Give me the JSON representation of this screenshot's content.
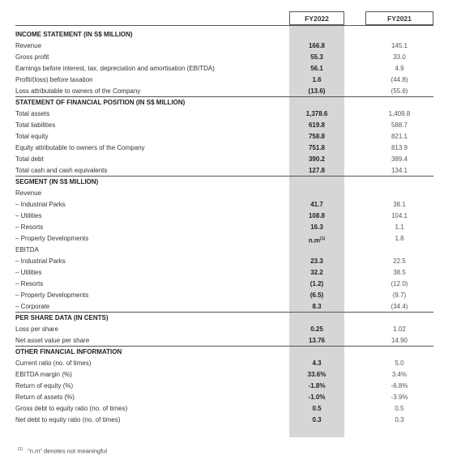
{
  "header": {
    "col1": "FY2022",
    "col2": "FY2021"
  },
  "rows": [
    {
      "type": "section",
      "label": "INCOME STATEMENT (IN S$ MILLION)"
    },
    {
      "type": "item",
      "label": "Revenue",
      "v22": "166.8",
      "v21": "145.1"
    },
    {
      "type": "item",
      "label": "Gross profit",
      "v22": "55.3",
      "v21": "33.0"
    },
    {
      "type": "item",
      "label": "Earnings before interest, tax, depreciation and amortisation (EBITDA)",
      "v22": "56.1",
      "v21": "4.9"
    },
    {
      "type": "item",
      "label": "Profit/(loss) before taxation",
      "v22": "1.6",
      "v21": "(44.8)"
    },
    {
      "type": "item",
      "label": "Loss attributable to owners of the Company",
      "v22": "(13.6)",
      "v21": "(55.6)",
      "ruled": true
    },
    {
      "type": "section",
      "label": "STATEMENT OF FINANCIAL POSITION (IN S$ MILLION)"
    },
    {
      "type": "item",
      "label": "Total assets",
      "v22": "1,378.6",
      "v21": "1,409.8"
    },
    {
      "type": "item",
      "label": "Total liabilities",
      "v22": "619.8",
      "v21": "588.7"
    },
    {
      "type": "item",
      "label": "Total equity",
      "v22": "758.8",
      "v21": "821.1"
    },
    {
      "type": "item",
      "label": "Equity attributable to owners of the Company",
      "v22": "751.8",
      "v21": "813.9"
    },
    {
      "type": "item",
      "label": "Total debt",
      "v22": "390.2",
      "v21": "389.4"
    },
    {
      "type": "item",
      "label": "Total cash and cash equivalents",
      "v22": "127.8",
      "v21": "134.1",
      "ruled": true
    },
    {
      "type": "section",
      "label": "SEGMENT (IN S$ MILLION)"
    },
    {
      "type": "item",
      "label": "Revenue",
      "v22": "",
      "v21": ""
    },
    {
      "type": "item",
      "label": "– Industrial Parks",
      "v22": "41.7",
      "v21": "38.1"
    },
    {
      "type": "item",
      "label": "– Utilities",
      "v22": "108.8",
      "v21": "104.1"
    },
    {
      "type": "item",
      "label": "– Resorts",
      "v22": "16.3",
      "v21": "1.1"
    },
    {
      "type": "item",
      "label": "– Property Developments",
      "v22": "n.m",
      "sup": "(1)",
      "v21": "1.8"
    },
    {
      "type": "item",
      "label": "EBITDA",
      "v22": "",
      "v21": ""
    },
    {
      "type": "item",
      "label": "– Industrial Parks",
      "v22": "23.3",
      "v21": "22.5"
    },
    {
      "type": "item",
      "label": "– Utilities",
      "v22": "32.2",
      "v21": "38.5"
    },
    {
      "type": "item",
      "label": "– Resorts",
      "v22": "(1.2)",
      "v21": "(12.0)"
    },
    {
      "type": "item",
      "label": "– Property Developments",
      "v22": "(6.5)",
      "v21": "(9.7)"
    },
    {
      "type": "item",
      "label": "– Corporate",
      "v22": "8.3",
      "v21": "(34.4)",
      "ruled": true
    },
    {
      "type": "section",
      "label": "PER SHARE DATA (IN CENTS)"
    },
    {
      "type": "item",
      "label": "Loss per share",
      "v22": "0.25",
      "v21": "1.02"
    },
    {
      "type": "item",
      "label": "Net asset value per share",
      "v22": "13.76",
      "v21": "14.90",
      "ruled": true
    },
    {
      "type": "section",
      "label": "OTHER FINANCIAL INFORMATION"
    },
    {
      "type": "item",
      "label": "Current ratio (no. of times)",
      "v22": "4.3",
      "v21": "5.0"
    },
    {
      "type": "item",
      "label": "EBITDA margin (%)",
      "v22": "33.6%",
      "v21": "3.4%"
    },
    {
      "type": "item",
      "label": "Return of equity (%)",
      "v22": "-1.8%",
      "v21": "-6.8%"
    },
    {
      "type": "item",
      "label": "Return of assets (%)",
      "v22": "-1.0%",
      "v21": "-3.9%"
    },
    {
      "type": "item",
      "label": "Gross debt to equity ratio (no. of times)",
      "v22": "0.5",
      "v21": "0.5"
    },
    {
      "type": "item",
      "label": "Net debt to equity ratio (no. of times)",
      "v22": "0.3",
      "v21": "0.3"
    }
  ],
  "footnote": {
    "mark": "(1)",
    "text": "\"n.m\" denotes not meaningful"
  }
}
